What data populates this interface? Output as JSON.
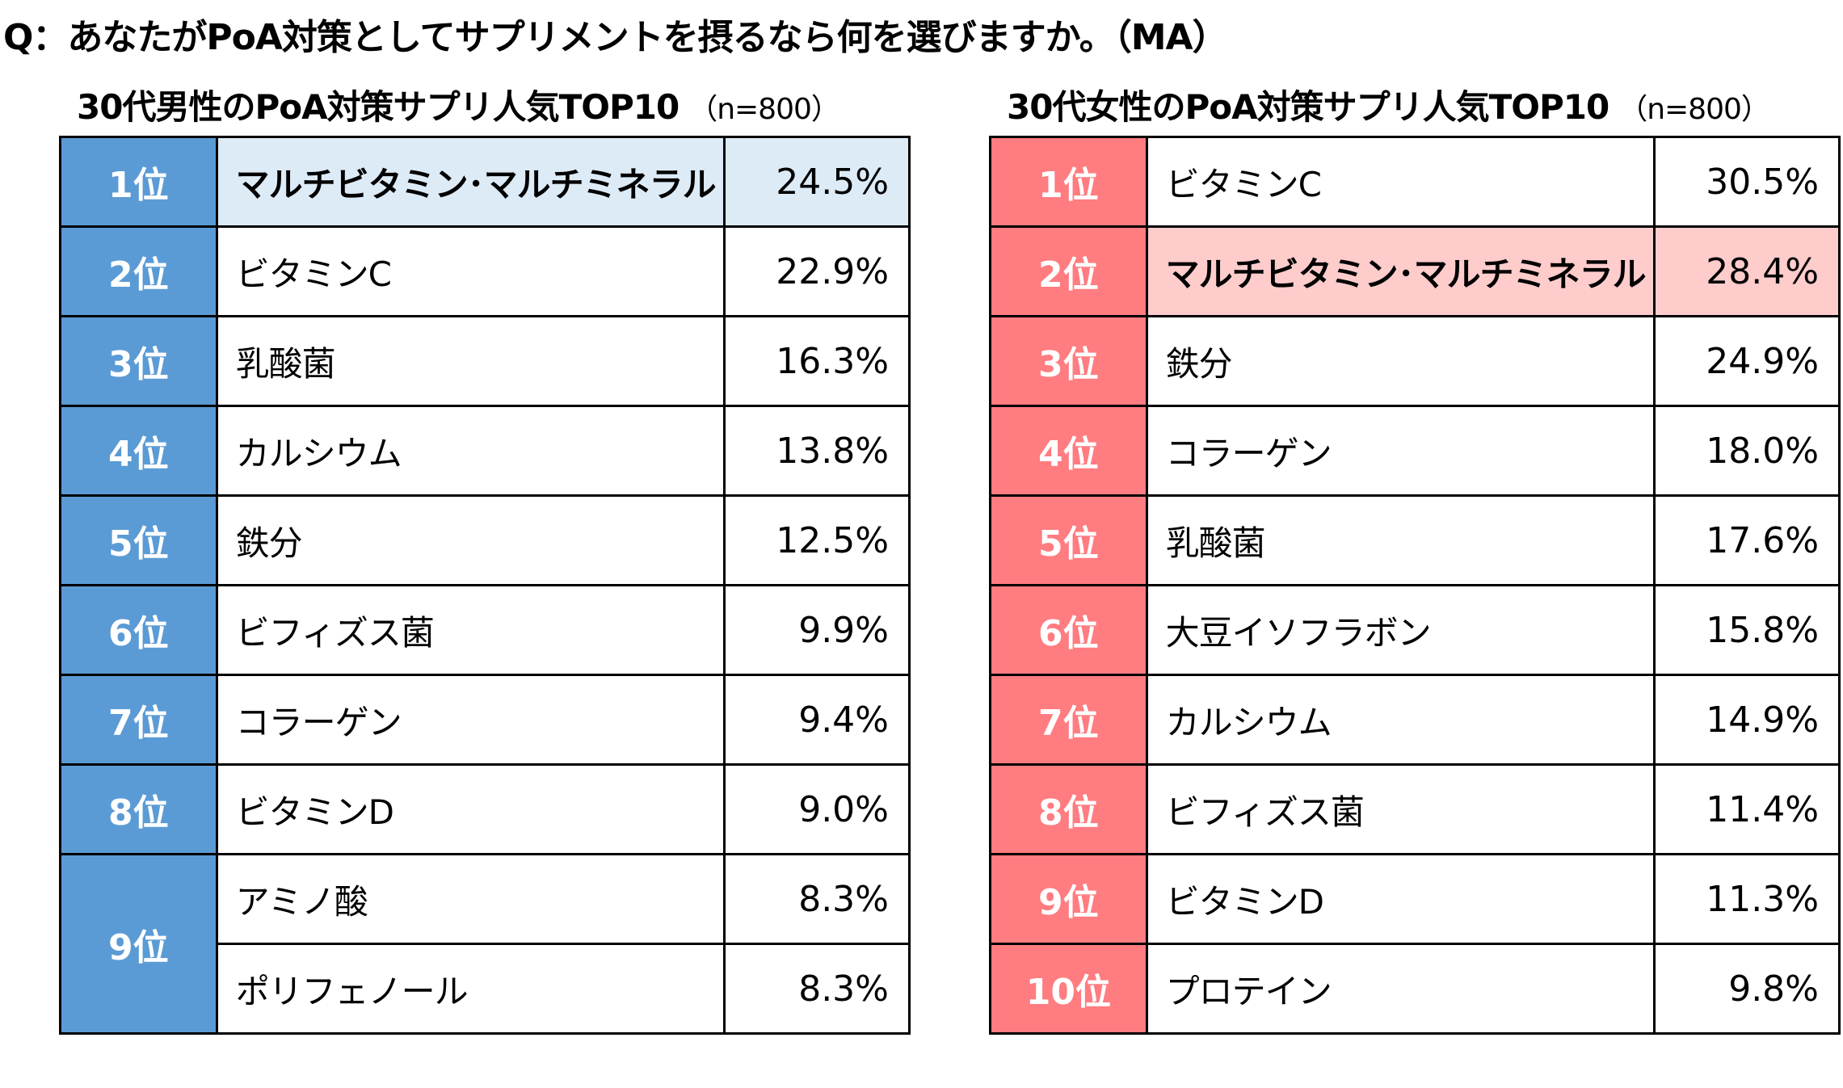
{
  "question": "Q：あなたがPoA対策としてサプリメントを摂るなら何を選びますか。（MA）",
  "chart_data": [
    {
      "type": "table",
      "title": "30代男性のPoA対策サプリ人気TOP10",
      "sample": "（n=800）",
      "accent_color": "#5b9bd5",
      "highlight_color": "#ddebf7",
      "rows": [
        {
          "rank": "1位",
          "item": "マルチビタミン･マルチミネラル",
          "value": "24.5%",
          "highlight": true
        },
        {
          "rank": "2位",
          "item": "ビタミンC",
          "value": "22.9%"
        },
        {
          "rank": "3位",
          "item": "乳酸菌",
          "value": "16.3%"
        },
        {
          "rank": "4位",
          "item": "カルシウム",
          "value": "13.8%"
        },
        {
          "rank": "5位",
          "item": "鉄分",
          "value": "12.5%"
        },
        {
          "rank": "6位",
          "item": "ビフィズス菌",
          "value": "9.9%"
        },
        {
          "rank": "7位",
          "item": "コラーゲン",
          "value": "9.4%"
        },
        {
          "rank": "8位",
          "item": "ビタミンD",
          "value": "9.0%"
        },
        {
          "rank": "9位",
          "item": "アミノ酸",
          "value": "8.3%"
        },
        {
          "rank": "9位",
          "item": "ポリフェノール",
          "value": "8.3%"
        }
      ]
    },
    {
      "type": "table",
      "title": "30代女性のPoA対策サプリ人気TOP10",
      "sample": "（n=800）",
      "accent_color": "#ff7c80",
      "highlight_color": "#ffcccc",
      "rows": [
        {
          "rank": "1位",
          "item": "ビタミンC",
          "value": "30.5%"
        },
        {
          "rank": "2位",
          "item": "マルチビタミン･マルチミネラル",
          "value": "28.4%",
          "highlight": true
        },
        {
          "rank": "3位",
          "item": "鉄分",
          "value": "24.9%"
        },
        {
          "rank": "4位",
          "item": "コラーゲン",
          "value": "18.0%"
        },
        {
          "rank": "5位",
          "item": "乳酸菌",
          "value": "17.6%"
        },
        {
          "rank": "6位",
          "item": "大豆イソフラボン",
          "value": "15.8%"
        },
        {
          "rank": "7位",
          "item": "カルシウム",
          "value": "14.9%"
        },
        {
          "rank": "8位",
          "item": "ビフィズス菌",
          "value": "11.4%"
        },
        {
          "rank": "9位",
          "item": "ビタミンD",
          "value": "11.3%"
        },
        {
          "rank": "10位",
          "item": "プロテイン",
          "value": "9.8%"
        }
      ]
    }
  ]
}
